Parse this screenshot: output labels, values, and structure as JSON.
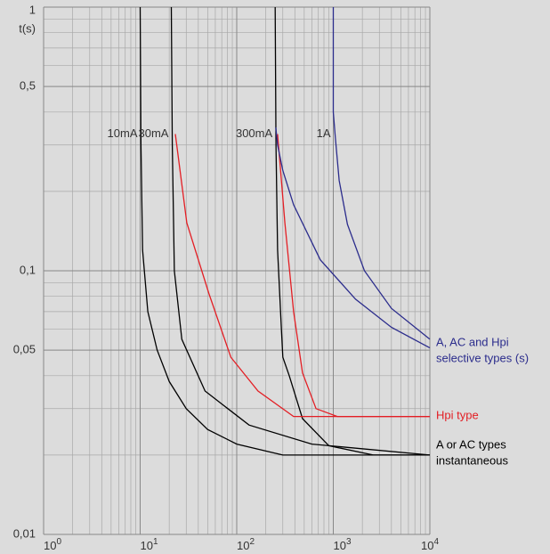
{
  "chart_data": {
    "type": "line",
    "log_x": true,
    "log_y": true,
    "grid": true,
    "minor_grid": true,
    "ylabel": "t(s)",
    "xlim": [
      1,
      10000
    ],
    "xticks": [
      {
        "value": 1,
        "label": "10",
        "exp": "0"
      },
      {
        "value": 10,
        "label": "10",
        "exp": "1"
      },
      {
        "value": 100,
        "label": "10",
        "exp": "2"
      },
      {
        "value": 1000,
        "label": "10",
        "exp": "3"
      },
      {
        "value": 10000,
        "label": "10",
        "exp": "4"
      }
    ],
    "ylim": [
      0.01,
      1
    ],
    "yticks": [
      {
        "value": 0.01,
        "label": "0,01"
      },
      {
        "value": 0.05,
        "label": "0,05"
      },
      {
        "value": 0.1,
        "label": "0,1"
      },
      {
        "value": 0.5,
        "label": "0,5"
      },
      1
    ],
    "series": [
      {
        "color": "#000000",
        "x": [
          10,
          10.2,
          10.6,
          12,
          15,
          20,
          30,
          50,
          100,
          300,
          10000
        ],
        "values": [
          1,
          0.3,
          0.12,
          0.07,
          0.05,
          0.038,
          0.03,
          0.025,
          0.022,
          0.02,
          0.02
        ]
      },
      {
        "color": "#000000",
        "x": [
          21,
          21.5,
          22.6,
          27,
          47,
          134,
          600,
          10000
        ],
        "values": [
          1,
          0.3,
          0.1,
          0.055,
          0.035,
          0.026,
          0.022,
          0.02
        ]
      },
      {
        "color": "#000000",
        "x": [
          250,
          255,
          265,
          290,
          300,
          350,
          480,
          900,
          2600,
          10000
        ],
        "values": [
          1,
          0.3,
          0.12,
          0.06,
          0.047,
          0.04,
          0.0275,
          0.0217,
          0.02,
          0.02
        ]
      },
      {
        "color": "#e31e24",
        "x": [
          23.1,
          30.4,
          51.5,
          87,
          166,
          388,
          10000
        ],
        "values": [
          0.33,
          0.152,
          0.082,
          0.047,
          0.035,
          0.028,
          0.028
        ]
      },
      {
        "color": "#e31e24",
        "x": [
          265,
          315,
          388,
          480,
          663,
          1100,
          10000
        ],
        "values": [
          0.33,
          0.152,
          0.07,
          0.041,
          0.03,
          0.028,
          0.028
        ]
      },
      {
        "color": "#2b2c8c",
        "x": [
          254,
          265,
          300,
          388,
          734,
          1700,
          4000,
          10000
        ],
        "values": [
          0.35,
          0.3,
          0.24,
          0.178,
          0.11,
          0.078,
          0.061,
          0.051
        ]
      },
      {
        "color": "#2b2c8c",
        "x": [
          1000,
          1000,
          1050,
          1150,
          1400,
          2100,
          4000,
          10000
        ],
        "values": [
          1,
          0.4,
          0.32,
          0.22,
          0.15,
          0.1,
          0.072,
          0.055
        ]
      }
    ],
    "curve_labels": [
      {
        "text": "10mA",
        "x": 10,
        "y": 0.33
      },
      {
        "text": "30mA",
        "x": 21,
        "y": 0.33
      },
      {
        "text": "300mA",
        "x": 250,
        "y": 0.33
      },
      {
        "text": "1A",
        "x": 1000,
        "y": 0.33
      }
    ],
    "type_labels": [
      {
        "lines": [
          "A, AC and Hpi",
          "selective types (s)"
        ],
        "color": "#2b2c8c"
      },
      {
        "lines": [
          "Hpi type"
        ],
        "color": "#e31e24"
      },
      {
        "lines": [
          "A or AC types",
          "instantaneous"
        ],
        "color": "#000000"
      }
    ]
  }
}
